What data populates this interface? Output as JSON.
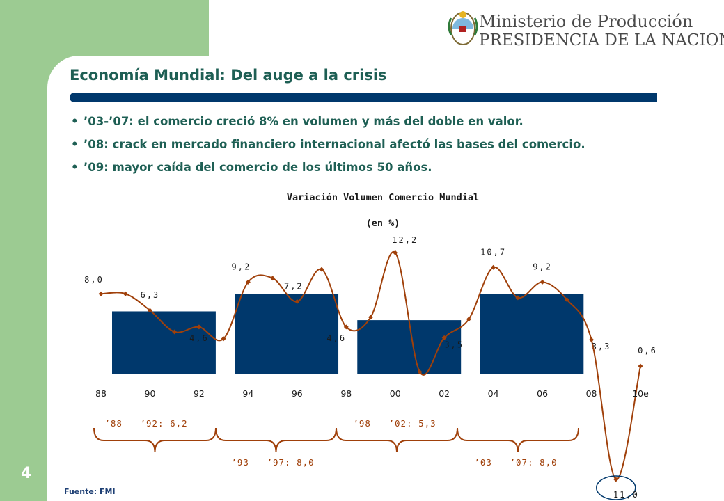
{
  "header": {
    "ministry": "Ministerio de Producción",
    "presidency": "PRESIDENCIA DE LA NACION"
  },
  "slide": {
    "title": "Economía Mundial: Del auge a la crisis",
    "bullets": [
      "’03-’07: el comercio creció 8% en volumen y más del doble en valor.",
      "’08: crack en mercado financiero internacional afectó las bases del comercio.",
      "’09: mayor caída del comercio de los últimos 50 años."
    ],
    "page_number": "4",
    "source": "Fuente: FMI"
  },
  "colors": {
    "green": "#9ccb92",
    "navy": "#00386c",
    "title_green": "#1e5f54",
    "line": "#a0400a"
  },
  "chart_data": {
    "type": "line",
    "title": "Variación Volumen Comercio Mundial",
    "subtitle": "(en %)",
    "xticks": [
      "88",
      "90",
      "92",
      "94",
      "96",
      "98",
      "00",
      "02",
      "04",
      "06",
      "08",
      "10e"
    ],
    "ylim": [
      -12,
      13
    ],
    "series": [
      {
        "x": [
          1988,
          1989,
          1990,
          1991,
          1992,
          1993,
          1994,
          1995,
          1996,
          1997,
          1998,
          1999,
          2000,
          2001,
          2002,
          2003,
          2004,
          2005,
          2006,
          2007,
          2008,
          2009,
          2010
        ],
        "values": [
          8.0,
          8.0,
          6.3,
          4.1,
          4.6,
          3.4,
          9.2,
          9.6,
          7.2,
          10.5,
          4.6,
          5.6,
          12.2,
          0.0,
          3.5,
          5.4,
          10.7,
          7.6,
          9.2,
          7.4,
          3.3,
          -11.0,
          0.6
        ]
      }
    ],
    "point_labels": [
      {
        "x": 1988,
        "text": "8,0"
      },
      {
        "x": 1990,
        "text": "6,3"
      },
      {
        "x": 1992,
        "text": "4,6"
      },
      {
        "x": 1994,
        "text": "9,2"
      },
      {
        "x": 1996,
        "text": "7,2"
      },
      {
        "x": 1998,
        "text": "4,6"
      },
      {
        "x": 2000,
        "text": "12,2"
      },
      {
        "x": 2002,
        "text": "3,5"
      },
      {
        "x": 2004,
        "text": "10,7"
      },
      {
        "x": 2006,
        "text": "9,2"
      },
      {
        "x": 2008,
        "text": "3,3"
      },
      {
        "x": 2009,
        "text": "-11,0"
      },
      {
        "x": 2010,
        "text": "0,6"
      }
    ],
    "period_bars": [
      {
        "from": 1988,
        "to": 1992,
        "value": 6.2
      },
      {
        "from": 1993,
        "to": 1997,
        "value": 8.0
      },
      {
        "from": 1998,
        "to": 2002,
        "value": 5.3
      },
      {
        "from": 2003,
        "to": 2007,
        "value": 8.0
      }
    ],
    "period_labels": [
      {
        "text": "’88 – ’92: 6,2",
        "position": "top"
      },
      {
        "text": "’93 – ’97: 8,0",
        "position": "bottom"
      },
      {
        "text": "’98 – ’02: 5,3",
        "position": "top"
      },
      {
        "text": "’03 – ’07: 8,0",
        "position": "bottom"
      }
    ]
  }
}
